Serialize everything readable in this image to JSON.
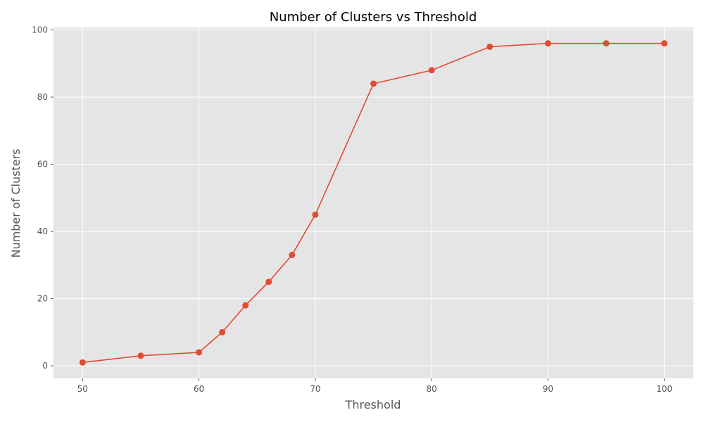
{
  "chart_data": {
    "type": "line",
    "title": "Number of Clusters vs Threshold",
    "xlabel": "Threshold",
    "ylabel": "Number of Clusters",
    "grid": true,
    "xlim": [
      47.5,
      102.5
    ],
    "ylim": [
      -3.75,
      100.75
    ],
    "x_ticks": [
      50,
      60,
      70,
      80,
      90,
      100
    ],
    "y_ticks": [
      0,
      20,
      40,
      60,
      80,
      100
    ],
    "series": [
      {
        "color": "#E24A33",
        "x": [
          50,
          55,
          60,
          62,
          64,
          66,
          68,
          70,
          75,
          80,
          85,
          90,
          95,
          100
        ],
        "y": [
          1,
          3,
          4,
          10,
          18,
          25,
          33,
          45,
          84,
          88,
          95,
          96,
          96,
          96
        ]
      }
    ]
  },
  "style": {
    "background": "#E5E5E5",
    "grid_color": "#FFFFFF"
  }
}
